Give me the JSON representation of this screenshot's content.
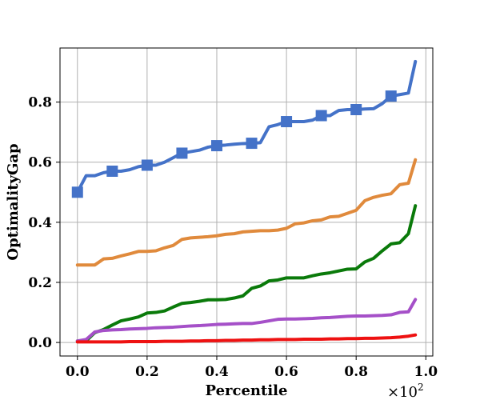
{
  "chart_data": {
    "type": "line",
    "title": "",
    "xlabel": "Percentile",
    "ylabel": "OptimalityGap",
    "x_scale_note": "×10²",
    "xlim": [
      -0.05,
      1.02
    ],
    "ylim": [
      -0.045,
      0.98
    ],
    "xticks": [
      0.0,
      0.2,
      0.4,
      0.6,
      0.8,
      1.0
    ],
    "xtick_labels": [
      "0.0",
      "0.2",
      "0.4",
      "0.6",
      "0.8",
      "1.0"
    ],
    "yticks": [
      0.0,
      0.2,
      0.4,
      0.6,
      0.8
    ],
    "ytick_labels": [
      "0.0",
      "0.2",
      "0.4",
      "0.6",
      "0.8"
    ],
    "grid": true,
    "series": [
      {
        "name": "blue",
        "color": "#4472c8",
        "marker": "square",
        "marker_x": [
          0.0,
          0.1,
          0.2,
          0.3,
          0.4,
          0.5,
          0.6,
          0.7,
          0.8,
          0.9
        ],
        "x": [
          0.0,
          0.025,
          0.05,
          0.075,
          0.1,
          0.125,
          0.15,
          0.175,
          0.2,
          0.225,
          0.25,
          0.275,
          0.3,
          0.325,
          0.35,
          0.375,
          0.4,
          0.425,
          0.45,
          0.475,
          0.5,
          0.525,
          0.55,
          0.575,
          0.6,
          0.625,
          0.65,
          0.675,
          0.7,
          0.725,
          0.75,
          0.775,
          0.8,
          0.825,
          0.85,
          0.875,
          0.9,
          0.925,
          0.95,
          0.97
        ],
        "y": [
          0.5,
          0.555,
          0.555,
          0.565,
          0.57,
          0.57,
          0.575,
          0.585,
          0.59,
          0.59,
          0.6,
          0.615,
          0.63,
          0.635,
          0.64,
          0.65,
          0.655,
          0.657,
          0.66,
          0.662,
          0.663,
          0.665,
          0.718,
          0.725,
          0.735,
          0.735,
          0.735,
          0.74,
          0.755,
          0.755,
          0.772,
          0.775,
          0.775,
          0.777,
          0.778,
          0.795,
          0.82,
          0.825,
          0.83,
          0.935
        ]
      },
      {
        "name": "orange",
        "color": "#e08a3c",
        "marker": "none",
        "x": [
          0.0,
          0.025,
          0.05,
          0.075,
          0.1,
          0.125,
          0.15,
          0.175,
          0.2,
          0.225,
          0.25,
          0.275,
          0.3,
          0.325,
          0.35,
          0.375,
          0.4,
          0.425,
          0.45,
          0.475,
          0.5,
          0.525,
          0.55,
          0.575,
          0.6,
          0.625,
          0.65,
          0.675,
          0.7,
          0.725,
          0.75,
          0.775,
          0.8,
          0.825,
          0.85,
          0.875,
          0.9,
          0.925,
          0.95,
          0.97
        ],
        "y": [
          0.258,
          0.258,
          0.258,
          0.278,
          0.28,
          0.288,
          0.295,
          0.303,
          0.303,
          0.305,
          0.315,
          0.323,
          0.343,
          0.348,
          0.35,
          0.352,
          0.355,
          0.36,
          0.362,
          0.368,
          0.37,
          0.372,
          0.372,
          0.374,
          0.38,
          0.395,
          0.398,
          0.405,
          0.408,
          0.418,
          0.42,
          0.43,
          0.44,
          0.472,
          0.483,
          0.49,
          0.495,
          0.525,
          0.53,
          0.608
        ]
      },
      {
        "name": "green",
        "color": "#0a7a0a",
        "marker": "none",
        "x": [
          0.0,
          0.025,
          0.05,
          0.075,
          0.1,
          0.125,
          0.15,
          0.175,
          0.2,
          0.225,
          0.25,
          0.275,
          0.3,
          0.325,
          0.35,
          0.375,
          0.4,
          0.425,
          0.45,
          0.475,
          0.5,
          0.525,
          0.55,
          0.575,
          0.6,
          0.625,
          0.65,
          0.675,
          0.7,
          0.725,
          0.75,
          0.775,
          0.8,
          0.825,
          0.85,
          0.875,
          0.9,
          0.925,
          0.95,
          0.97
        ],
        "y": [
          0.005,
          0.005,
          0.033,
          0.043,
          0.058,
          0.072,
          0.078,
          0.085,
          0.098,
          0.1,
          0.105,
          0.118,
          0.13,
          0.133,
          0.137,
          0.142,
          0.142,
          0.143,
          0.148,
          0.155,
          0.18,
          0.188,
          0.205,
          0.208,
          0.215,
          0.215,
          0.215,
          0.222,
          0.228,
          0.232,
          0.238,
          0.244,
          0.245,
          0.268,
          0.28,
          0.305,
          0.328,
          0.332,
          0.362,
          0.455
        ]
      },
      {
        "name": "purple",
        "color": "#a550c8",
        "marker": "none",
        "x": [
          0.0,
          0.025,
          0.05,
          0.075,
          0.1,
          0.125,
          0.15,
          0.175,
          0.2,
          0.225,
          0.25,
          0.275,
          0.3,
          0.325,
          0.35,
          0.375,
          0.4,
          0.425,
          0.45,
          0.475,
          0.5,
          0.525,
          0.55,
          0.575,
          0.6,
          0.625,
          0.65,
          0.675,
          0.7,
          0.725,
          0.75,
          0.775,
          0.8,
          0.825,
          0.85,
          0.875,
          0.9,
          0.925,
          0.95,
          0.97
        ],
        "y": [
          0.005,
          0.01,
          0.035,
          0.04,
          0.042,
          0.043,
          0.045,
          0.046,
          0.047,
          0.049,
          0.05,
          0.051,
          0.053,
          0.055,
          0.056,
          0.058,
          0.06,
          0.061,
          0.062,
          0.063,
          0.063,
          0.067,
          0.072,
          0.077,
          0.078,
          0.078,
          0.079,
          0.08,
          0.082,
          0.083,
          0.085,
          0.087,
          0.088,
          0.088,
          0.089,
          0.09,
          0.092,
          0.1,
          0.102,
          0.143
        ]
      },
      {
        "name": "red",
        "color": "#ee1111",
        "marker": "none",
        "x": [
          0.0,
          0.025,
          0.05,
          0.075,
          0.1,
          0.125,
          0.15,
          0.175,
          0.2,
          0.225,
          0.25,
          0.275,
          0.3,
          0.325,
          0.35,
          0.375,
          0.4,
          0.425,
          0.45,
          0.475,
          0.5,
          0.525,
          0.55,
          0.575,
          0.6,
          0.625,
          0.65,
          0.675,
          0.7,
          0.725,
          0.75,
          0.775,
          0.8,
          0.825,
          0.85,
          0.875,
          0.9,
          0.925,
          0.95,
          0.97
        ],
        "y": [
          0.002,
          0.002,
          0.002,
          0.002,
          0.002,
          0.002,
          0.003,
          0.003,
          0.003,
          0.003,
          0.004,
          0.004,
          0.004,
          0.005,
          0.005,
          0.006,
          0.006,
          0.007,
          0.007,
          0.008,
          0.008,
          0.009,
          0.009,
          0.01,
          0.01,
          0.01,
          0.011,
          0.011,
          0.011,
          0.012,
          0.012,
          0.013,
          0.013,
          0.014,
          0.014,
          0.015,
          0.016,
          0.018,
          0.021,
          0.025
        ]
      }
    ]
  }
}
